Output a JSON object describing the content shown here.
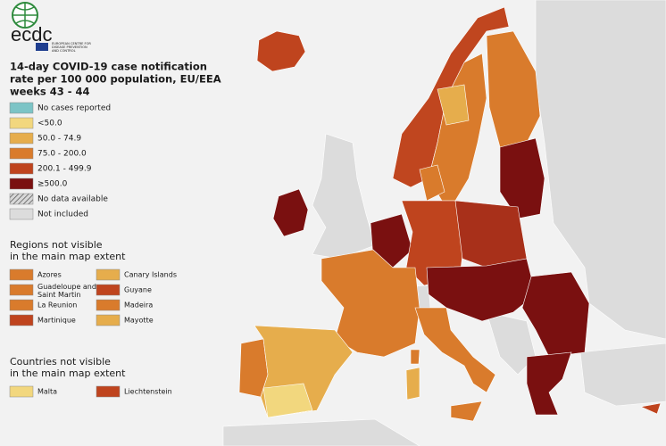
{
  "logo": {
    "text": "ecdc",
    "subtitle": [
      "EUROPEAN CENTRE FOR",
      "DISEASE PREVENTION",
      "AND CONTROL"
    ]
  },
  "title": [
    "14-day COVID-19 case notification",
    "rate per 100 000 population, EU/EEA",
    "weeks 43 - 44"
  ],
  "legend": [
    {
      "label": "No cases reported",
      "color": "#7cc4c6"
    },
    {
      "label": "<50.0",
      "color": "#f2d77e"
    },
    {
      "label": "50.0 - 74.9",
      "color": "#e6ad4c"
    },
    {
      "label": "75.0 - 200.0",
      "color": "#d97b2c"
    },
    {
      "label": "200.1 - 499.9",
      "color": "#bf441e"
    },
    {
      "label": "≥500.0",
      "color": "#7a1010"
    },
    {
      "label": "No data available",
      "color": "#9a9a9a",
      "hatched": true
    },
    {
      "label": "Not included",
      "color": "#dcdcdc"
    }
  ],
  "regions": {
    "title": [
      "Regions not visible",
      "in the main map extent"
    ],
    "items": [
      {
        "label": "Azores",
        "color": "#d97b2c"
      },
      {
        "label": "Canary Islands",
        "color": "#e6ad4c"
      },
      {
        "label": "Guadeloupe and Saint Martin",
        "color": "#d97b2c"
      },
      {
        "label": "Guyane",
        "color": "#bf441e"
      },
      {
        "label": "La Reunion",
        "color": "#d97b2c"
      },
      {
        "label": "Madeira",
        "color": "#d97b2c"
      },
      {
        "label": "Martinique",
        "color": "#bf441e"
      },
      {
        "label": "Mayotte",
        "color": "#e6ad4c"
      }
    ]
  },
  "countries": {
    "title": [
      "Countries not visible",
      "in the main map extent"
    ],
    "items": [
      {
        "label": "Malta",
        "color": "#f2d77e"
      },
      {
        "label": "Liechtenstein",
        "color": "#bf441e"
      }
    ]
  }
}
